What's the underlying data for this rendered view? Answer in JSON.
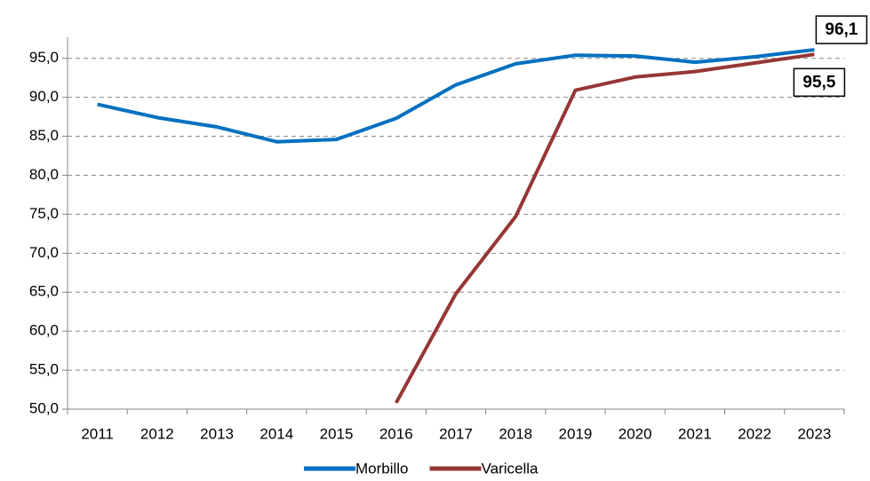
{
  "chart_data": {
    "type": "line",
    "categories": [
      "2011",
      "2012",
      "2013",
      "2014",
      "2015",
      "2016",
      "2017",
      "2018",
      "2019",
      "2020",
      "2021",
      "2022",
      "2023"
    ],
    "series": [
      {
        "name": "Morbillo",
        "color": "#0070c0",
        "values": [
          89.1,
          87.4,
          86.2,
          84.3,
          84.6,
          87.3,
          91.6,
          94.3,
          95.4,
          95.3,
          94.5,
          95.2,
          96.1
        ],
        "value_labels": [
          null,
          null,
          null,
          null,
          null,
          null,
          null,
          null,
          null,
          null,
          null,
          null,
          "96,1"
        ]
      },
      {
        "name": "Varicella",
        "color": "#953735",
        "values": [
          null,
          null,
          null,
          null,
          null,
          50.8,
          64.8,
          74.7,
          90.9,
          92.6,
          93.3,
          94.4,
          95.5
        ],
        "value_labels": [
          null,
          null,
          null,
          null,
          null,
          null,
          null,
          null,
          null,
          null,
          null,
          null,
          "95,5"
        ]
      }
    ],
    "ylim": [
      50,
      97.7
    ],
    "yticks": [
      {
        "value": 50,
        "label": "50,0"
      },
      {
        "value": 55,
        "label": "55,0"
      },
      {
        "value": 60,
        "label": "60,0"
      },
      {
        "value": 65,
        "label": "65,0"
      },
      {
        "value": 70,
        "label": "70,0"
      },
      {
        "value": 75,
        "label": "75,0"
      },
      {
        "value": 80,
        "label": "80,0"
      },
      {
        "value": 85,
        "label": "85,0"
      },
      {
        "value": 90,
        "label": "90,0"
      },
      {
        "value": 95,
        "label": "95,0"
      }
    ],
    "grid": true,
    "legend": "bottom"
  }
}
